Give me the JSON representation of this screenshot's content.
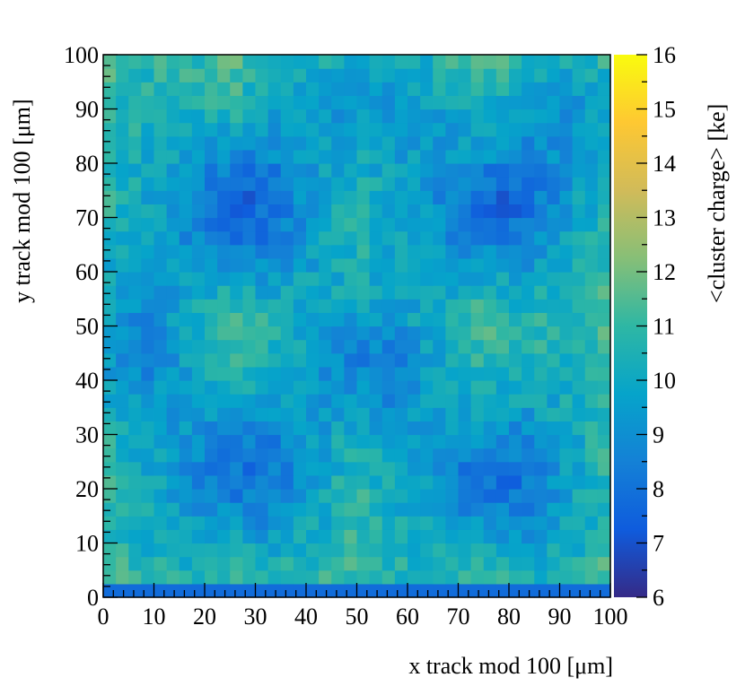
{
  "chart_data": {
    "type": "heatmap",
    "xlabel": "x track mod 100 [μm]",
    "ylabel": "y track mod 100 [μm]",
    "zlabel": "<cluster charge> [ke]",
    "xlim": [
      0,
      100
    ],
    "ylim": [
      0,
      100
    ],
    "zlim": [
      6,
      16
    ],
    "x_ticks": [
      "0",
      "10",
      "20",
      "30",
      "40",
      "50",
      "60",
      "70",
      "80",
      "90",
      "100"
    ],
    "y_ticks": [
      "0",
      "10",
      "20",
      "30",
      "40",
      "50",
      "60",
      "70",
      "80",
      "90",
      "100"
    ],
    "z_ticks": [
      "6",
      "7",
      "8",
      "9",
      "10",
      "11",
      "12",
      "13",
      "14",
      "15",
      "16"
    ],
    "bins": [
      40,
      40
    ],
    "bin_width": 2.5,
    "colormap": "parula",
    "colorscale": [
      "#352a87",
      "#0f5cdd",
      "#1481d6",
      "#06a4ca",
      "#2eb7a4",
      "#87bf77",
      "#d1bb59",
      "#fec832",
      "#f9fb0e"
    ],
    "grid": false,
    "legend": "colorbar-right",
    "values_note": "mean cluster charge per 2.5 μm bin: ~9.5–10.5 ke in the background, ~7–8 ke minima near (27,72), (77,72), (5,48), (52,45), (27,23), (77,22), ~12–13 ke maxima along pixel boundaries (x≈0, 25, 50, 75, 100 and y≈0, 50, 100)"
  }
}
